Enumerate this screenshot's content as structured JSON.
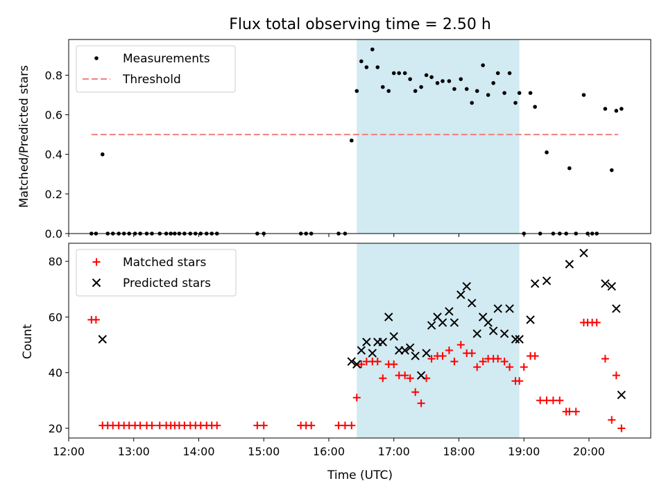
{
  "chart_data": [
    {
      "type": "scatter",
      "title": "Flux total observing time = 2.50 h",
      "xlabel": "",
      "ylabel": "Matched/Predicted stars",
      "xlim": [
        12.0,
        20.95
      ],
      "ylim": [
        0.0,
        0.98
      ],
      "xticks": [
        12,
        13,
        14,
        15,
        16,
        17,
        18,
        19,
        20
      ],
      "yticks": [
        0.0,
        0.2,
        0.4,
        0.6,
        0.8
      ],
      "ytick_labels": [
        "0.0",
        "0.2",
        "0.4",
        "0.6",
        "0.8"
      ],
      "legend_position": "upper left",
      "shaded_span": {
        "x0": 16.43,
        "x1": 18.93,
        "color": "#add8e6"
      },
      "series": [
        {
          "name": "Measurements",
          "kind": "scatter",
          "color": "#000000",
          "x": [
            12.35,
            12.42,
            12.52,
            12.6,
            12.68,
            12.77,
            12.85,
            12.93,
            13.02,
            13.1,
            13.2,
            13.28,
            13.4,
            13.5,
            13.57,
            13.63,
            13.7,
            13.78,
            13.87,
            13.95,
            14.03,
            14.12,
            14.2,
            14.28,
            14.9,
            15.0,
            15.57,
            15.65,
            15.73,
            16.15,
            16.25,
            16.35,
            16.43,
            16.5,
            16.58,
            16.67,
            16.75,
            16.83,
            16.92,
            17.0,
            17.08,
            17.17,
            17.25,
            17.33,
            17.42,
            17.5,
            17.58,
            17.67,
            17.75,
            17.85,
            17.93,
            18.03,
            18.12,
            18.2,
            18.28,
            18.37,
            18.45,
            18.53,
            18.6,
            18.7,
            18.78,
            18.87,
            18.93,
            19.0,
            19.1,
            19.17,
            19.25,
            19.35,
            19.45,
            19.55,
            19.65,
            19.7,
            19.8,
            19.92,
            19.98,
            20.05,
            20.12,
            20.25,
            20.35,
            20.42,
            20.5
          ],
          "values": [
            0.0,
            0.0,
            0.4,
            0.0,
            0.0,
            0.0,
            0.0,
            0.0,
            0.0,
            0.0,
            0.0,
            0.0,
            0.0,
            0.0,
            0.0,
            0.0,
            0.0,
            0.0,
            0.0,
            0.0,
            0.0,
            0.0,
            0.0,
            0.0,
            0.0,
            0.0,
            0.0,
            0.0,
            0.0,
            0.0,
            0.0,
            0.47,
            0.72,
            0.87,
            0.84,
            0.93,
            0.84,
            0.74,
            0.72,
            0.81,
            0.81,
            0.81,
            0.78,
            0.72,
            0.74,
            0.8,
            0.79,
            0.76,
            0.77,
            0.77,
            0.73,
            0.78,
            0.73,
            0.66,
            0.72,
            0.85,
            0.7,
            0.76,
            0.81,
            0.71,
            0.81,
            0.66,
            0.71,
            0.0,
            0.71,
            0.64,
            0.0,
            0.41,
            0.0,
            0.0,
            0.0,
            0.33,
            0.0,
            0.7,
            0.0,
            0.0,
            0.0,
            0.63,
            0.32,
            0.62,
            0.63
          ]
        },
        {
          "name": "Threshold",
          "kind": "dashed-line",
          "color": "#f08080",
          "x": [
            12.35,
            20.45
          ],
          "values": [
            0.5,
            0.5
          ]
        }
      ]
    },
    {
      "type": "scatter",
      "title": "",
      "xlabel": "Time (UTC)",
      "ylabel": "Count",
      "xlim": [
        12.0,
        20.95
      ],
      "ylim": [
        16.5,
        86.5
      ],
      "xticks": [
        12,
        13,
        14,
        15,
        16,
        17,
        18,
        19,
        20
      ],
      "xtick_labels": [
        "12:00",
        "13:00",
        "14:00",
        "15:00",
        "16:00",
        "17:00",
        "18:00",
        "19:00",
        "20:00"
      ],
      "yticks": [
        20,
        40,
        60,
        80
      ],
      "ytick_labels": [
        "20",
        "40",
        "60",
        "80"
      ],
      "legend_position": "upper left",
      "shaded_span": {
        "x0": 16.43,
        "x1": 18.93,
        "color": "#add8e6"
      },
      "series": [
        {
          "name": "Matched stars",
          "kind": "plus",
          "color": "#ff0000",
          "x": [
            12.35,
            12.42,
            12.52,
            12.6,
            12.68,
            12.77,
            12.85,
            12.93,
            13.02,
            13.1,
            13.2,
            13.28,
            13.4,
            13.5,
            13.57,
            13.63,
            13.7,
            13.78,
            13.87,
            13.95,
            14.03,
            14.12,
            14.2,
            14.28,
            14.9,
            15.0,
            15.57,
            15.65,
            15.73,
            16.15,
            16.25,
            16.35,
            16.43,
            16.5,
            16.58,
            16.67,
            16.75,
            16.83,
            16.92,
            17.0,
            17.08,
            17.17,
            17.25,
            17.33,
            17.42,
            17.5,
            17.58,
            17.67,
            17.75,
            17.85,
            17.93,
            18.03,
            18.12,
            18.2,
            18.28,
            18.37,
            18.45,
            18.53,
            18.6,
            18.7,
            18.78,
            18.87,
            18.93,
            19.0,
            19.1,
            19.17,
            19.25,
            19.35,
            19.45,
            19.55,
            19.65,
            19.7,
            19.8,
            19.92,
            19.98,
            20.05,
            20.12,
            20.25,
            20.35,
            20.42,
            20.5
          ],
          "values": [
            59,
            59,
            21,
            21,
            21,
            21,
            21,
            21,
            21,
            21,
            21,
            21,
            21,
            21,
            21,
            21,
            21,
            21,
            21,
            21,
            21,
            21,
            21,
            21,
            21,
            21,
            21,
            21,
            21,
            21,
            21,
            21,
            31,
            43,
            44,
            44,
            44,
            38,
            43,
            43,
            39,
            39,
            38,
            33,
            29,
            38,
            45,
            46,
            46,
            48,
            44,
            50,
            47,
            47,
            42,
            44,
            45,
            45,
            45,
            44,
            42,
            37,
            37,
            42,
            46,
            46,
            30,
            30,
            30,
            30,
            26,
            26,
            26,
            58,
            58,
            58,
            58,
            45,
            23,
            39,
            20
          ]
        },
        {
          "name": "Predicted stars",
          "kind": "cross",
          "color": "#000000",
          "x": [
            12.52,
            16.35,
            16.43,
            16.5,
            16.58,
            16.67,
            16.75,
            16.83,
            16.92,
            17.0,
            17.08,
            17.17,
            17.25,
            17.33,
            17.42,
            17.5,
            17.58,
            17.67,
            17.75,
            17.85,
            17.93,
            18.03,
            18.12,
            18.2,
            18.28,
            18.37,
            18.45,
            18.53,
            18.6,
            18.7,
            18.78,
            18.87,
            18.93,
            19.1,
            19.17,
            19.35,
            19.7,
            19.92,
            20.25,
            20.35,
            20.42,
            20.5
          ],
          "values": [
            52,
            44,
            43,
            48,
            51,
            47,
            51,
            51,
            60,
            53,
            48,
            48,
            49,
            46,
            39,
            47,
            57,
            60,
            58,
            62,
            58,
            68,
            71,
            65,
            54,
            60,
            58,
            55,
            63,
            54,
            63,
            52,
            52,
            59,
            72,
            73,
            79,
            83,
            72,
            71,
            63,
            32
          ]
        }
      ]
    }
  ]
}
